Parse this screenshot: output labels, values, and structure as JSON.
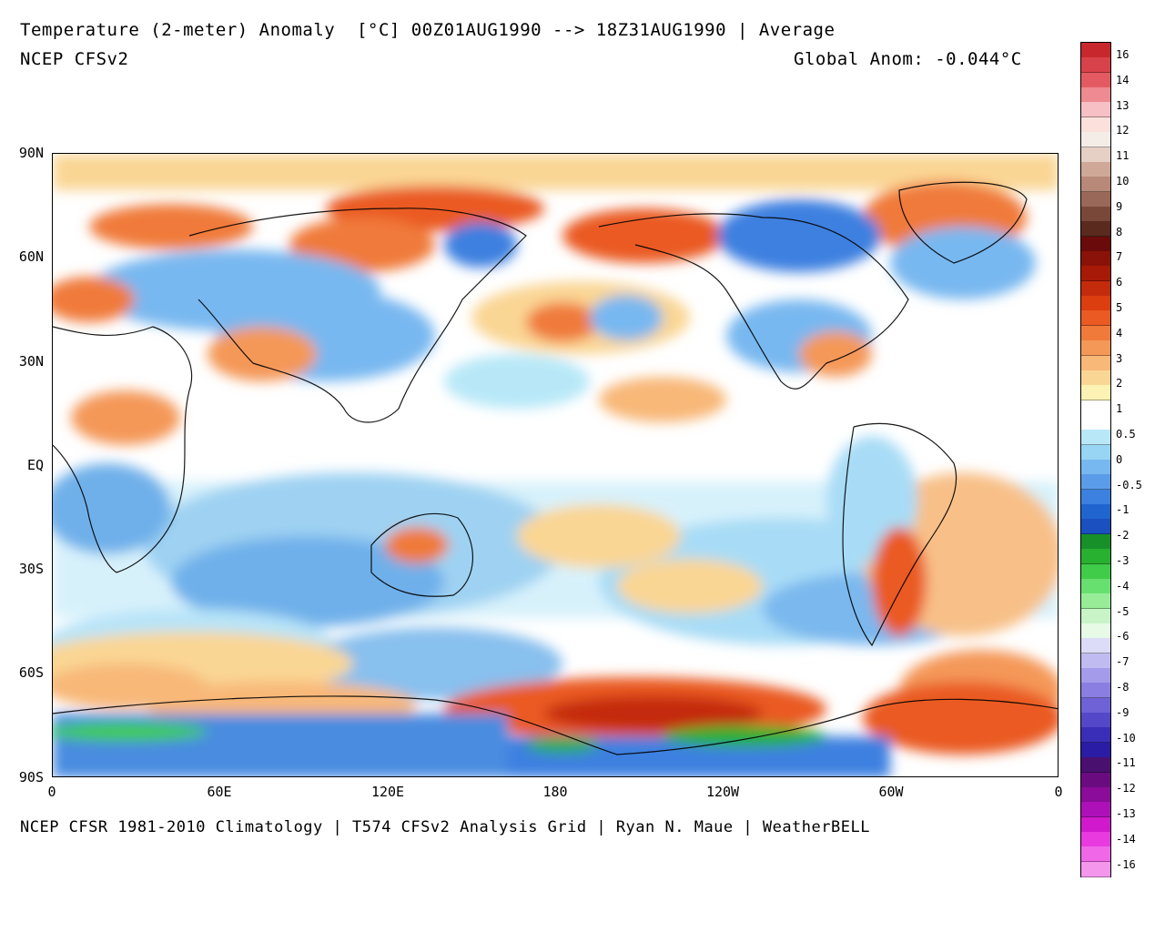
{
  "header": {
    "title": "Temperature (2-meter) Anomaly  [°C] 00Z01AUG1990 --> 18Z31AUG1990 | Average",
    "model": "NCEP CFSv2",
    "global_anom": "Global Anom: -0.044°C"
  },
  "footer": {
    "credit": "NCEP CFSR 1981-2010 Climatology | T574 CFSv2 Analysis Grid | Ryan N. Maue | WeatherBELL"
  },
  "axes": {
    "lat_labels": [
      "90N",
      "60N",
      "30N",
      "EQ",
      "30S",
      "60S",
      "90S"
    ],
    "lon_labels": [
      "0",
      "60E",
      "120E",
      "180",
      "120W",
      "60W",
      "0"
    ]
  },
  "colorbar": {
    "labels": [
      "16",
      "14",
      "13",
      "12",
      "11",
      "10",
      "9",
      "8",
      "7",
      "6",
      "5",
      "4",
      "3",
      "2",
      "1",
      "0.5",
      "0",
      "-0.5",
      "-1",
      "-2",
      "-3",
      "-4",
      "-5",
      "-6",
      "-7",
      "-8",
      "-9",
      "-10",
      "-11",
      "-12",
      "-13",
      "-14",
      "-16"
    ],
    "colors": [
      "#c8282d",
      "#d8424a",
      "#e45a62",
      "#ee8a92",
      "#f6c0c4",
      "#fbe0dc",
      "#f4ece6",
      "#e6cfc4",
      "#cfa898",
      "#b88878",
      "#9a6858",
      "#7a4838",
      "#5a2a1e",
      "#6a0a0a",
      "#8a1208",
      "#a81a08",
      "#c42a0c",
      "#dc3e10",
      "#ea5a22",
      "#f07a3a",
      "#f49858",
      "#f8b878",
      "#fad694",
      "#fcf2b4",
      "#ffffff",
      "#ffffff",
      "#b8e8f8",
      "#98d4f4",
      "#78b8f0",
      "#5a9ce8",
      "#3c80e0",
      "#2064d0",
      "#1a50c0",
      "#18902a",
      "#28b030",
      "#40cc48",
      "#68e070",
      "#98ec98",
      "#c8f4c8",
      "#e6fae6",
      "#dcdcf8",
      "#c0bcf2",
      "#a49cea",
      "#8a7ee2",
      "#6e62d6",
      "#5448c8",
      "#3a2eb8",
      "#2a1ca4",
      "#4a1070",
      "#6a0c80",
      "#8a0c98",
      "#ae10b8",
      "#d018cc",
      "#e83ade",
      "#f068e8",
      "#f496ec"
    ]
  }
}
